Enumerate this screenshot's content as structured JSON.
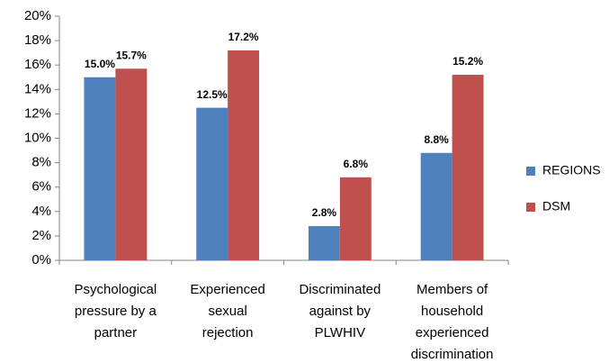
{
  "chart_data": {
    "type": "bar",
    "categories": [
      "Psychological\npressure by a\npartner",
      "Experienced\nsexual\nrejection",
      "Discriminated\nagainst by\nPLWHIV",
      "Members of\nhousehold\nexperienced\ndiscrimination"
    ],
    "series": [
      {
        "name": "REGIONS",
        "color": "#4f81bd",
        "values": [
          15.0,
          12.5,
          2.8,
          8.8
        ],
        "value_labels": [
          "15.0%",
          "12.5%",
          "2.8%",
          "8.8%"
        ]
      },
      {
        "name": "DSM",
        "color": "#c0504d",
        "values": [
          15.7,
          17.2,
          6.8,
          15.2
        ],
        "value_labels": [
          "15.7%",
          "17.2%",
          "6.8%",
          "15.2%"
        ]
      }
    ],
    "ylim": [
      0,
      20
    ],
    "yticks": [
      {
        "value": 0,
        "label": "0%"
      },
      {
        "value": 2,
        "label": "2%"
      },
      {
        "value": 4,
        "label": "4%"
      },
      {
        "value": 6,
        "label": "6%"
      },
      {
        "value": 8,
        "label": "8%"
      },
      {
        "value": 10,
        "label": "10%"
      },
      {
        "value": 12,
        "label": "12%"
      },
      {
        "value": 14,
        "label": "14%"
      },
      {
        "value": 16,
        "label": "16%"
      },
      {
        "value": 18,
        "label": "18%"
      },
      {
        "value": 20,
        "label": "20%"
      }
    ],
    "grid": false,
    "legend": "right"
  }
}
